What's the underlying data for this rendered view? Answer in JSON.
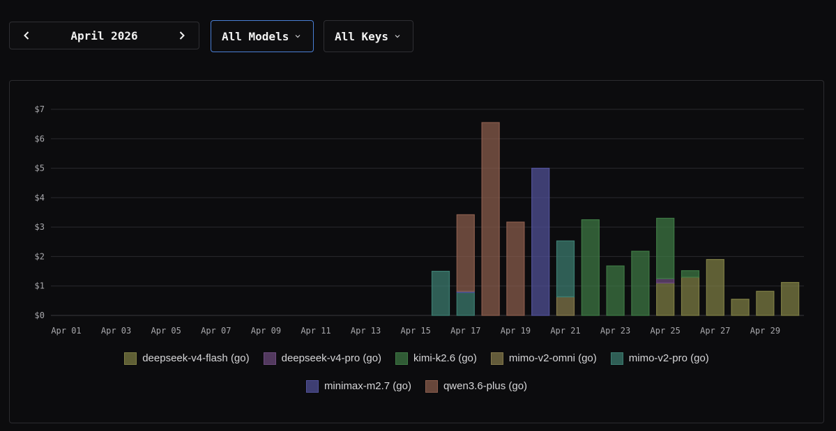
{
  "controls": {
    "month_label": "April 2026",
    "model_select": "All Models",
    "key_select": "All Keys",
    "prev_icon": "chevron-left-icon",
    "next_icon": "chevron-right-icon",
    "dropdown_icon": "chevron-down-icon"
  },
  "chart_data": {
    "type": "bar",
    "stacked": true,
    "y_tick_prefix": "$",
    "ylim": [
      0,
      7
    ],
    "y_ticks": [
      0,
      1,
      2,
      3,
      4,
      5,
      6,
      7
    ],
    "y_tick_labels": [
      "$0",
      "$1",
      "$2",
      "$3",
      "$4",
      "$5",
      "$6",
      "$7"
    ],
    "categories": [
      "Apr 01",
      "Apr 02",
      "Apr 03",
      "Apr 04",
      "Apr 05",
      "Apr 06",
      "Apr 07",
      "Apr 08",
      "Apr 09",
      "Apr 10",
      "Apr 11",
      "Apr 12",
      "Apr 13",
      "Apr 14",
      "Apr 15",
      "Apr 16",
      "Apr 17",
      "Apr 18",
      "Apr 19",
      "Apr 20",
      "Apr 21",
      "Apr 22",
      "Apr 23",
      "Apr 24",
      "Apr 25",
      "Apr 26",
      "Apr 27",
      "Apr 28",
      "Apr 29",
      "Apr 30"
    ],
    "x_tick_labels": [
      "Apr 01",
      "Apr 03",
      "Apr 05",
      "Apr 07",
      "Apr 09",
      "Apr 11",
      "Apr 13",
      "Apr 15",
      "Apr 17",
      "Apr 19",
      "Apr 21",
      "Apr 23",
      "Apr 25",
      "Apr 27",
      "Apr 29"
    ],
    "grid": true,
    "legend_position": "bottom",
    "series": [
      {
        "name": "deepseek-v4-flash (go)",
        "color": "#7f7f45",
        "values": [
          0,
          0,
          0,
          0,
          0,
          0,
          0,
          0,
          0,
          0,
          0,
          0,
          0,
          0,
          0,
          0,
          0,
          0,
          0,
          0,
          0,
          0,
          0,
          0,
          1.1,
          1.3,
          1.9,
          0.55,
          0.82,
          1.12
        ]
      },
      {
        "name": "deepseek-v4-pro (go)",
        "color": "#6e4b7e",
        "values": [
          0,
          0,
          0,
          0,
          0,
          0,
          0,
          0,
          0,
          0,
          0,
          0,
          0,
          0,
          0,
          0,
          0,
          0,
          0,
          0,
          0,
          0,
          0,
          0,
          0.15,
          0,
          0,
          0,
          0,
          0
        ]
      },
      {
        "name": "kimi-k2.6 (go)",
        "color": "#3f7a45",
        "values": [
          0,
          0,
          0,
          0,
          0,
          0,
          0,
          0,
          0,
          0,
          0,
          0,
          0,
          0,
          0,
          0,
          0,
          0,
          0,
          0,
          0,
          3.25,
          1.68,
          2.18,
          2.05,
          0.22,
          0,
          0,
          0,
          0
        ]
      },
      {
        "name": "mimo-v2-omni (go)",
        "color": "#857a4c",
        "values": [
          0,
          0,
          0,
          0,
          0,
          0,
          0,
          0,
          0,
          0,
          0,
          0,
          0,
          0,
          0,
          0,
          0,
          0,
          0,
          0,
          0.63,
          0,
          0,
          0,
          0,
          0,
          0,
          0,
          0,
          0
        ]
      },
      {
        "name": "mimo-v2-pro (go)",
        "color": "#3d7e72",
        "values": [
          0,
          0,
          0,
          0,
          0,
          0,
          0,
          0,
          0,
          0,
          0,
          0,
          0,
          0,
          0,
          1.5,
          0.78,
          0,
          0,
          0,
          1.9,
          0,
          0,
          0,
          0,
          0,
          0,
          0,
          0,
          0
        ]
      },
      {
        "name": "minimax-m2.7 (go)",
        "color": "#52529a",
        "values": [
          0,
          0,
          0,
          0,
          0,
          0,
          0,
          0,
          0,
          0,
          0,
          0,
          0,
          0,
          0,
          0,
          0.04,
          0,
          0,
          5.0,
          0,
          0,
          0,
          0,
          0,
          0,
          0,
          0,
          0,
          0
        ]
      },
      {
        "name": "qwen3.6-plus (go)",
        "color": "#8c5e4e",
        "values": [
          0,
          0,
          0,
          0,
          0,
          0,
          0,
          0,
          0,
          0,
          0,
          0,
          0,
          0,
          0,
          0,
          2.6,
          6.55,
          3.17,
          0,
          0,
          0,
          0,
          0,
          0,
          0,
          0,
          0,
          0,
          0
        ]
      }
    ]
  }
}
